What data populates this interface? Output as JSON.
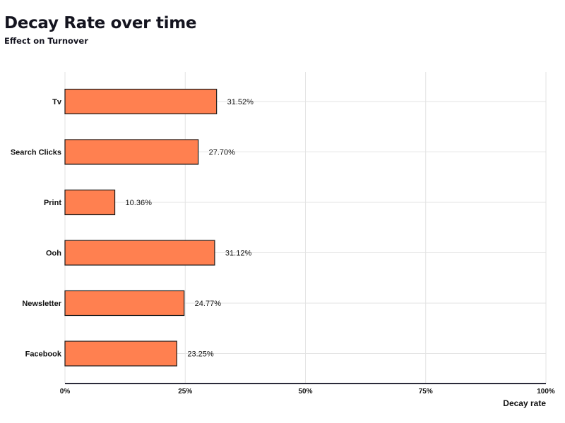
{
  "header": {
    "title": "Decay Rate over time",
    "subtitle": "Effect on Turnover"
  },
  "colors": {
    "bar_fill": "#FF8050",
    "bar_stroke": "#1a1a1a",
    "grid": "#e3e3e3",
    "axis": "#2b2b3a"
  },
  "chart_data": {
    "type": "bar",
    "orientation": "horizontal",
    "title": "Decay Rate over time",
    "subtitle": "Effect on Turnover",
    "xlabel": "Decay rate",
    "ylabel": "",
    "categories": [
      "Tv",
      "Search Clicks",
      "Print",
      "Ooh",
      "Newsletter",
      "Facebook"
    ],
    "values": [
      31.52,
      27.7,
      10.36,
      31.12,
      24.77,
      23.25
    ],
    "value_labels": [
      "31.52%",
      "27.70%",
      "10.36%",
      "31.12%",
      "24.77%",
      "23.25%"
    ],
    "xlim": [
      0,
      100
    ],
    "xticks": [
      0,
      25,
      50,
      75,
      100
    ],
    "xtick_labels": [
      "0%",
      "25%",
      "50%",
      "75%",
      "100%"
    ],
    "grid": true,
    "legend": "none"
  }
}
